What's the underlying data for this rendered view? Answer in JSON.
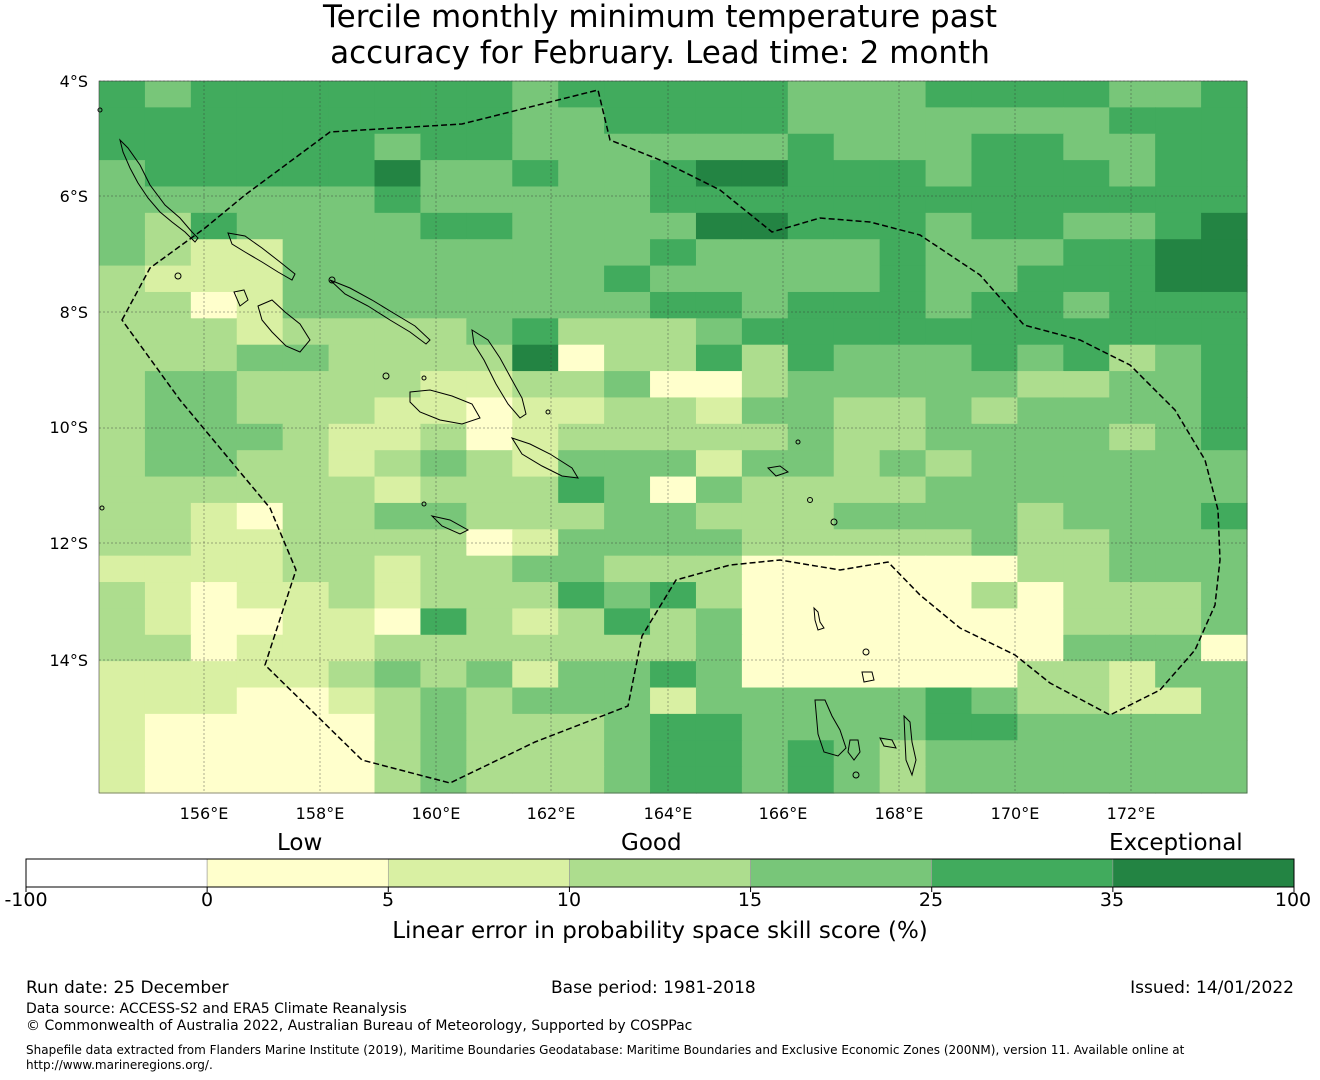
{
  "title_line1": "Tercile monthly minimum temperature past",
  "title_line2": "accuracy for February. Lead time: 2 month",
  "latitude_labels": [
    "4°S",
    "6°S",
    "8°S",
    "10°S",
    "12°S",
    "14°S"
  ],
  "longitude_labels": [
    "156°E",
    "158°E",
    "160°E",
    "162°E",
    "164°E",
    "166°E",
    "168°E",
    "170°E",
    "172°E"
  ],
  "colorbar": {
    "category_labels": [
      "Low",
      "Good",
      "Exceptional"
    ],
    "ticks": [
      "-100",
      "0",
      "5",
      "10",
      "15",
      "25",
      "35",
      "100"
    ],
    "colors": [
      "#ffffff",
      "#ffffcc",
      "#d9f0a3",
      "#addd8e",
      "#78c679",
      "#41ab5d",
      "#238443"
    ],
    "title": "Linear error in probability space skill score (%)"
  },
  "chart_data": {
    "type": "heatmap",
    "title": "Tercile monthly minimum temperature past accuracy for February. Lead time: 2 month",
    "variable": "Linear error in probability space skill score (%)",
    "class_bounds": [
      -100,
      0,
      5,
      10,
      15,
      25,
      35,
      100
    ],
    "lon_range": [
      154.2,
      174.2
    ],
    "lat_range": [
      -16.3,
      -4.0
    ],
    "cell_size_deg": 0.833,
    "legend": "1=0-5, 2=5-10, 3=10-15, 4=15-25, 5=25-35, 6=35-100",
    "grid_classes": [
      "5455555554555554445555445",
      "5555555554455554444444555",
      "5555554554444445444554455",
      "4555556445445665554555455",
      "4444445444445555555555555",
      "4354444554444665554554456",
      "4322444444445444454445566",
      "3222444444454444454455566",
      "3312444444445545554554555",
      "3332333345333455555555555",
      "3334433336133535444545345",
      "3443333223341134444433445",
      "3443332212233244334344445",
      "3444322312333334334444345",
      "3443323432444244343444444",
      "3333332333541433334444444",
      "3321334433344333444434445",
      "3322333312444433333433444",
      "2222332334433311111133444",
      "3212232333545311111313334",
      "3211221532353411111113334",
      "3312223333333411111114441",
      "2222234342445411111133244",
      "2221123434442444445433224",
      "2111113433345544445544444",
      "2111113433345545434444444",
      "2111113433345545434444444"
    ]
  },
  "run_date": "Run date: 25 December",
  "base_period": "Base period: 1981-2018",
  "issued": "Issued: 14/01/2022",
  "data_source": "Data source: ACCESS-S2 and ERA5 Climate Reanalysis",
  "copyright": "© Commonwealth of Australia 2022, Australian Bureau of Meteorology, Supported by COSPPac",
  "shapefile_note": "Shapefile data extracted from Flanders Marine Institute (2019), Maritime Boundaries Geodatabase: Maritime Boundaries and Exclusive Economic Zones (200NM), version 11. Available online at http://www.marineregions.org/."
}
